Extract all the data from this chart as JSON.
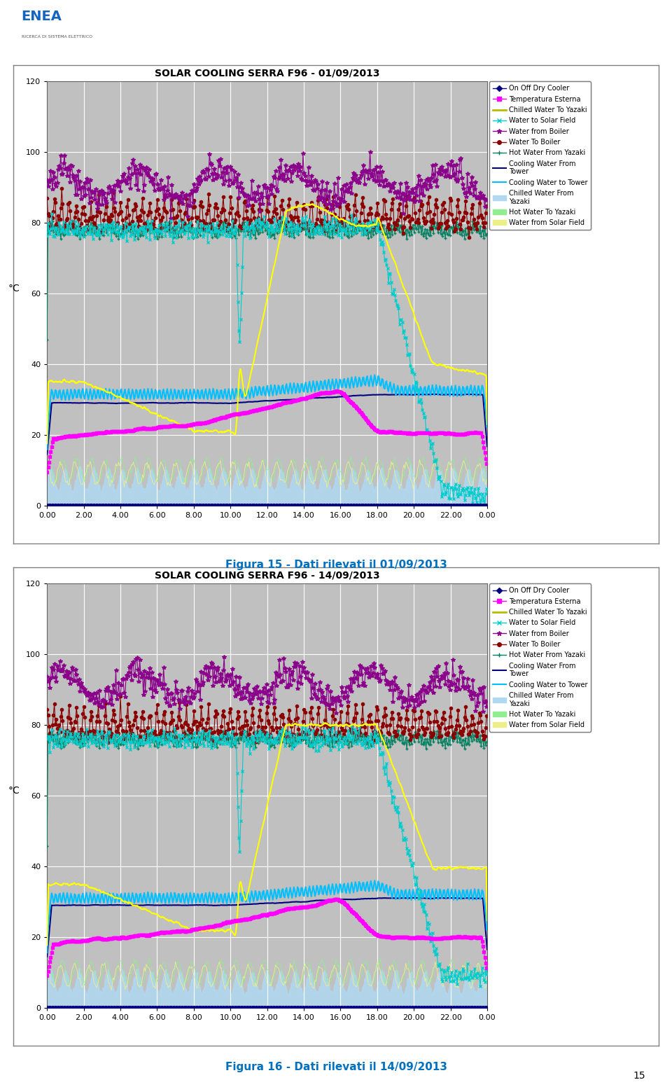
{
  "chart1_title": "SOLAR COOLING SERRA F96 - 01/09/2013",
  "chart2_title": "SOLAR COOLING SERRA F96 - 14/09/2013",
  "caption1": "Figura 15 - Dati rilevati il 01/09/2013",
  "caption2": "Figura 16 - Dati rilevati il 14/09/2013",
  "ylabel": "°C",
  "ylim": [
    0,
    120
  ],
  "yticks": [
    0,
    20,
    40,
    60,
    80,
    100,
    120
  ],
  "xtick_labels": [
    "0.00",
    "2.00",
    "4.00",
    "6.00",
    "8.00",
    "10.00",
    "12.00",
    "14.00",
    "16.00",
    "18.00",
    "20.00",
    "22.00",
    "0.00"
  ],
  "xtick_vals": [
    0,
    2,
    4,
    6,
    8,
    10,
    12,
    14,
    16,
    18,
    20,
    22,
    24
  ],
  "xlim": [
    0,
    24
  ],
  "plot_bg": "#C0C0C0",
  "grid_color": "#FFFFFF",
  "page_bg": "#FFFFFF",
  "chart_border_color": "#808080",
  "page_number": "15",
  "series": {
    "on_off": {
      "color": "#000080",
      "marker": "D",
      "ms": 3,
      "lw": 0.8,
      "label": "On Off Dry Cooler"
    },
    "temp_ext": {
      "color": "#FF00FF",
      "marker": "s",
      "ms": 3,
      "lw": 0.8,
      "label": "Temperatura Esterna"
    },
    "chilled_yazaki": {
      "color": "#FFFF00",
      "marker": "None",
      "ms": 0,
      "lw": 1.5,
      "label": "Chilled Water To Yazaki"
    },
    "water_solar": {
      "color": "#00CCCC",
      "marker": "x",
      "ms": 3,
      "lw": 0.8,
      "label": "Water to Solar Field"
    },
    "water_boiler_from": {
      "color": "#8B008B",
      "marker": "*",
      "ms": 4,
      "lw": 0.8,
      "label": "Water from Boiler"
    },
    "water_boiler_to": {
      "color": "#8B0000",
      "marker": "o",
      "ms": 3,
      "lw": 0.8,
      "label": "Water To Boiler"
    },
    "hot_yazaki": {
      "color": "#008060",
      "marker": "+",
      "ms": 3,
      "lw": 0.8,
      "label": "Hot Water From Yazaki"
    },
    "cool_tower_from": {
      "color": "#000080",
      "marker": "None",
      "ms": 0,
      "lw": 1.5,
      "label": "Cooling Water From Tower"
    },
    "cool_tower_to": {
      "color": "#00BFFF",
      "marker": "None",
      "ms": 0,
      "lw": 1.5,
      "label": "Cooling Water to Tower"
    },
    "chilled_from_yazaki": {
      "color": "#B0D8F0",
      "marker": "None",
      "ms": 0,
      "lw": 0.5,
      "label": "Chilled Water From Yazaki"
    },
    "hot_to_yazaki": {
      "color": "#90EE90",
      "marker": "None",
      "ms": 0,
      "lw": 0.5,
      "label": "Hot Water To Yazaki"
    },
    "water_solar_field": {
      "color": "#EEEE88",
      "marker": "None",
      "ms": 0,
      "lw": 0.5,
      "label": "Water from Solar Field"
    }
  }
}
